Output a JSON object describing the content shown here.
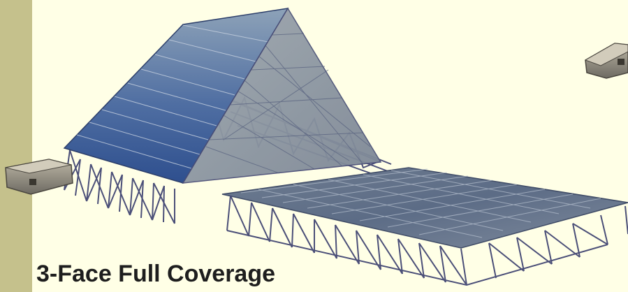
{
  "slide": {
    "caption": "3-Face Full Coverage"
  },
  "colors": {
    "background": "#ffffe6",
    "side_band": "#c5c18c",
    "panel_blue": "#3f5a8c",
    "panel_gray": "#8a97a8",
    "truss": "#4b4f78"
  }
}
